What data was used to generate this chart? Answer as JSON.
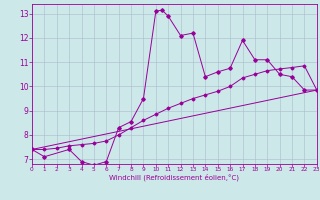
{
  "xlabel": "Windchill (Refroidissement éolien,°C)",
  "xlim": [
    0,
    23
  ],
  "ylim": [
    6.8,
    13.4
  ],
  "xticks": [
    0,
    1,
    2,
    3,
    4,
    5,
    6,
    7,
    8,
    9,
    10,
    11,
    12,
    13,
    14,
    15,
    16,
    17,
    18,
    19,
    20,
    21,
    22,
    23
  ],
  "yticks": [
    7,
    8,
    9,
    10,
    11,
    12,
    13
  ],
  "bg_color": "#cce8e8",
  "line_color": "#990099",
  "grid_color": "#aabbcc",
  "curve1_x": [
    0,
    1,
    3,
    4,
    5,
    6,
    7,
    8,
    9,
    10,
    10.5,
    11,
    12,
    13,
    14,
    15,
    16,
    17,
    18,
    19,
    20,
    21,
    22,
    23
  ],
  "curve1_y": [
    7.4,
    7.1,
    7.4,
    6.9,
    6.75,
    6.9,
    8.3,
    8.55,
    9.5,
    13.1,
    13.15,
    12.9,
    12.1,
    12.2,
    10.4,
    10.6,
    10.75,
    11.9,
    11.1,
    11.1,
    10.5,
    10.4,
    9.85,
    9.85
  ],
  "curve2_x": [
    0,
    1,
    2,
    3,
    4,
    5,
    6,
    7,
    8,
    9,
    10,
    11,
    12,
    13,
    14,
    15,
    16,
    17,
    18,
    19,
    20,
    21,
    22,
    23
  ],
  "curve2_y": [
    7.4,
    7.4,
    7.45,
    7.55,
    7.6,
    7.65,
    7.75,
    8.0,
    8.3,
    8.6,
    8.85,
    9.1,
    9.3,
    9.5,
    9.65,
    9.8,
    10.0,
    10.35,
    10.5,
    10.65,
    10.72,
    10.78,
    10.85,
    9.85
  ],
  "curve3_x": [
    0,
    23
  ],
  "curve3_y": [
    7.4,
    9.85
  ]
}
